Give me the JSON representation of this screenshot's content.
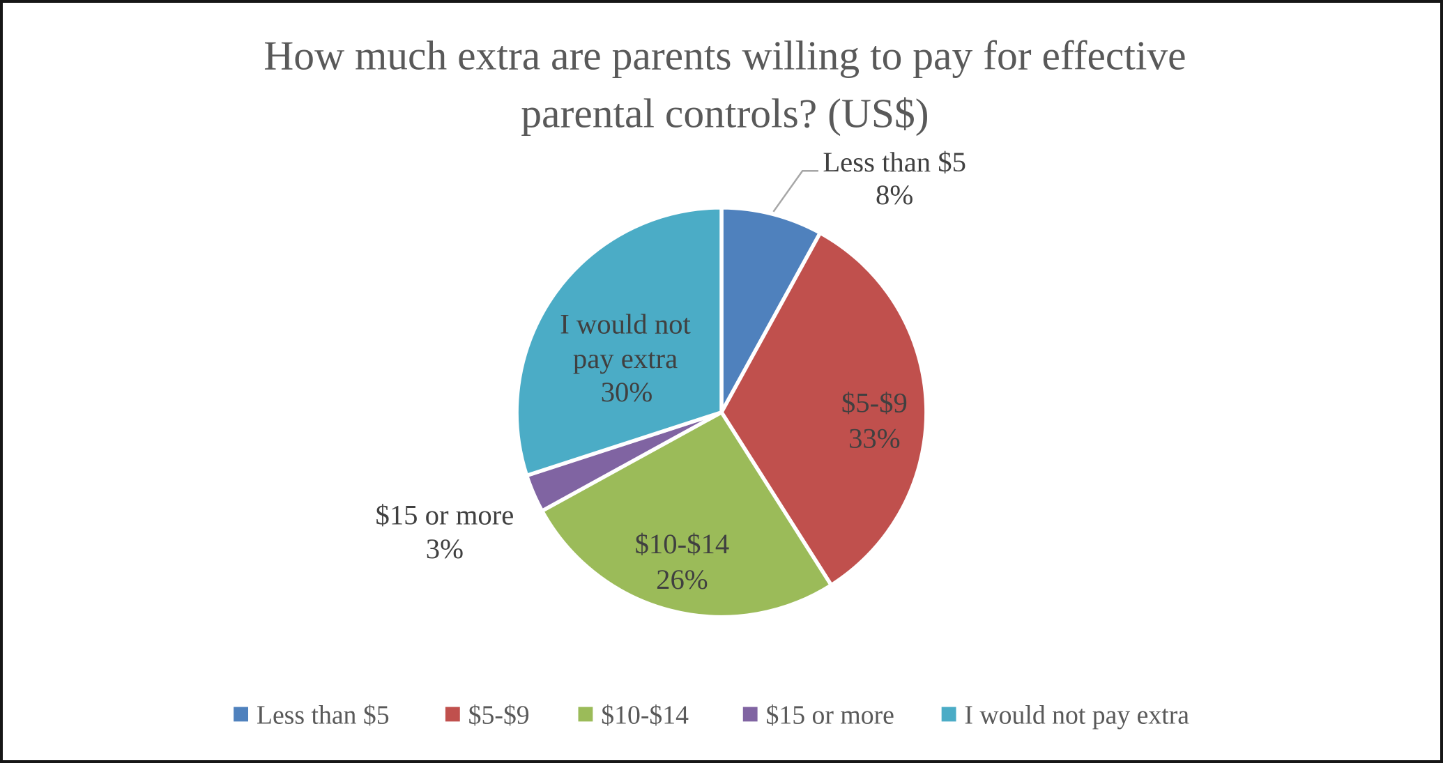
{
  "chart_data": {
    "type": "pie",
    "title": "How much extra are parents willing to pay for effective parental controls? (US$)",
    "title_lines": [
      "How much extra are parents willing to pay for effective",
      "parental controls? (US$)"
    ],
    "start_angle_deg": 0,
    "direction": "clockwise",
    "legend_position": "bottom",
    "slices": [
      {
        "label": "Less than $5",
        "value": 8,
        "pct_label": "8%",
        "color": "#4F81BD",
        "label_lines": [
          "Less than $5",
          "8%"
        ],
        "label_placement": "outside-with-leader"
      },
      {
        "label": "$5-$9",
        "value": 33,
        "pct_label": "33%",
        "color": "#C0504D",
        "label_lines": [
          "$5-$9",
          "33%"
        ],
        "label_placement": "inside"
      },
      {
        "label": "$10-$14",
        "value": 26,
        "pct_label": "26%",
        "color": "#9BBB59",
        "label_lines": [
          "$10-$14",
          "26%"
        ],
        "label_placement": "inside"
      },
      {
        "label": "$15 or more",
        "value": 3,
        "pct_label": "3%",
        "color": "#8064A2",
        "label_lines": [
          "$15 or more",
          "3%"
        ],
        "label_placement": "outside"
      },
      {
        "label": "I would not pay extra",
        "value": 30,
        "pct_label": "30%",
        "color": "#4BACC6",
        "label_lines": [
          "I would not",
          "pay extra",
          "30%"
        ],
        "label_placement": "inside"
      }
    ],
    "legend_entries": [
      "Less than $5",
      "$5-$9",
      "$10-$14",
      "$15 or more",
      "I would not pay extra"
    ]
  },
  "colors": {
    "title_text": "#595959",
    "label_text": "#404040",
    "leader_line": "#A6A6A6",
    "slice_border": "#FFFFFF",
    "frame_border": "#161616",
    "background": "#FFFFFF"
  }
}
